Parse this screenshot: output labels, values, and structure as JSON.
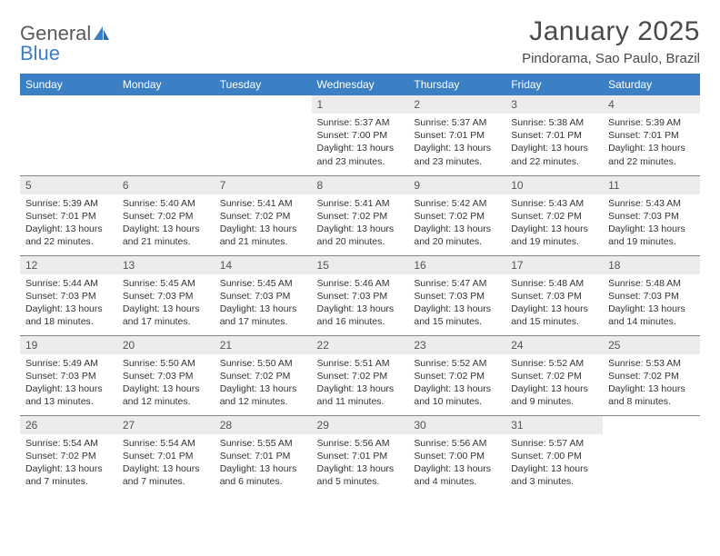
{
  "logo": {
    "text1": "General",
    "text2": "Blue"
  },
  "title": "January 2025",
  "location": "Pindorama, Sao Paulo, Brazil",
  "colors": {
    "header_bg": "#3b7fc4",
    "header_text": "#ffffff",
    "daynum_bg": "#ececec",
    "text": "#333333",
    "border": "#888888",
    "background": "#ffffff"
  },
  "weekdays": [
    "Sunday",
    "Monday",
    "Tuesday",
    "Wednesday",
    "Thursday",
    "Friday",
    "Saturday"
  ],
  "weeks": [
    [
      null,
      null,
      null,
      {
        "n": "1",
        "sr": "Sunrise: 5:37 AM",
        "ss": "Sunset: 7:00 PM",
        "d1": "Daylight: 13 hours",
        "d2": "and 23 minutes."
      },
      {
        "n": "2",
        "sr": "Sunrise: 5:37 AM",
        "ss": "Sunset: 7:01 PM",
        "d1": "Daylight: 13 hours",
        "d2": "and 23 minutes."
      },
      {
        "n": "3",
        "sr": "Sunrise: 5:38 AM",
        "ss": "Sunset: 7:01 PM",
        "d1": "Daylight: 13 hours",
        "d2": "and 22 minutes."
      },
      {
        "n": "4",
        "sr": "Sunrise: 5:39 AM",
        "ss": "Sunset: 7:01 PM",
        "d1": "Daylight: 13 hours",
        "d2": "and 22 minutes."
      }
    ],
    [
      {
        "n": "5",
        "sr": "Sunrise: 5:39 AM",
        "ss": "Sunset: 7:01 PM",
        "d1": "Daylight: 13 hours",
        "d2": "and 22 minutes."
      },
      {
        "n": "6",
        "sr": "Sunrise: 5:40 AM",
        "ss": "Sunset: 7:02 PM",
        "d1": "Daylight: 13 hours",
        "d2": "and 21 minutes."
      },
      {
        "n": "7",
        "sr": "Sunrise: 5:41 AM",
        "ss": "Sunset: 7:02 PM",
        "d1": "Daylight: 13 hours",
        "d2": "and 21 minutes."
      },
      {
        "n": "8",
        "sr": "Sunrise: 5:41 AM",
        "ss": "Sunset: 7:02 PM",
        "d1": "Daylight: 13 hours",
        "d2": "and 20 minutes."
      },
      {
        "n": "9",
        "sr": "Sunrise: 5:42 AM",
        "ss": "Sunset: 7:02 PM",
        "d1": "Daylight: 13 hours",
        "d2": "and 20 minutes."
      },
      {
        "n": "10",
        "sr": "Sunrise: 5:43 AM",
        "ss": "Sunset: 7:02 PM",
        "d1": "Daylight: 13 hours",
        "d2": "and 19 minutes."
      },
      {
        "n": "11",
        "sr": "Sunrise: 5:43 AM",
        "ss": "Sunset: 7:03 PM",
        "d1": "Daylight: 13 hours",
        "d2": "and 19 minutes."
      }
    ],
    [
      {
        "n": "12",
        "sr": "Sunrise: 5:44 AM",
        "ss": "Sunset: 7:03 PM",
        "d1": "Daylight: 13 hours",
        "d2": "and 18 minutes."
      },
      {
        "n": "13",
        "sr": "Sunrise: 5:45 AM",
        "ss": "Sunset: 7:03 PM",
        "d1": "Daylight: 13 hours",
        "d2": "and 17 minutes."
      },
      {
        "n": "14",
        "sr": "Sunrise: 5:45 AM",
        "ss": "Sunset: 7:03 PM",
        "d1": "Daylight: 13 hours",
        "d2": "and 17 minutes."
      },
      {
        "n": "15",
        "sr": "Sunrise: 5:46 AM",
        "ss": "Sunset: 7:03 PM",
        "d1": "Daylight: 13 hours",
        "d2": "and 16 minutes."
      },
      {
        "n": "16",
        "sr": "Sunrise: 5:47 AM",
        "ss": "Sunset: 7:03 PM",
        "d1": "Daylight: 13 hours",
        "d2": "and 15 minutes."
      },
      {
        "n": "17",
        "sr": "Sunrise: 5:48 AM",
        "ss": "Sunset: 7:03 PM",
        "d1": "Daylight: 13 hours",
        "d2": "and 15 minutes."
      },
      {
        "n": "18",
        "sr": "Sunrise: 5:48 AM",
        "ss": "Sunset: 7:03 PM",
        "d1": "Daylight: 13 hours",
        "d2": "and 14 minutes."
      }
    ],
    [
      {
        "n": "19",
        "sr": "Sunrise: 5:49 AM",
        "ss": "Sunset: 7:03 PM",
        "d1": "Daylight: 13 hours",
        "d2": "and 13 minutes."
      },
      {
        "n": "20",
        "sr": "Sunrise: 5:50 AM",
        "ss": "Sunset: 7:03 PM",
        "d1": "Daylight: 13 hours",
        "d2": "and 12 minutes."
      },
      {
        "n": "21",
        "sr": "Sunrise: 5:50 AM",
        "ss": "Sunset: 7:02 PM",
        "d1": "Daylight: 13 hours",
        "d2": "and 12 minutes."
      },
      {
        "n": "22",
        "sr": "Sunrise: 5:51 AM",
        "ss": "Sunset: 7:02 PM",
        "d1": "Daylight: 13 hours",
        "d2": "and 11 minutes."
      },
      {
        "n": "23",
        "sr": "Sunrise: 5:52 AM",
        "ss": "Sunset: 7:02 PM",
        "d1": "Daylight: 13 hours",
        "d2": "and 10 minutes."
      },
      {
        "n": "24",
        "sr": "Sunrise: 5:52 AM",
        "ss": "Sunset: 7:02 PM",
        "d1": "Daylight: 13 hours",
        "d2": "and 9 minutes."
      },
      {
        "n": "25",
        "sr": "Sunrise: 5:53 AM",
        "ss": "Sunset: 7:02 PM",
        "d1": "Daylight: 13 hours",
        "d2": "and 8 minutes."
      }
    ],
    [
      {
        "n": "26",
        "sr": "Sunrise: 5:54 AM",
        "ss": "Sunset: 7:02 PM",
        "d1": "Daylight: 13 hours",
        "d2": "and 7 minutes."
      },
      {
        "n": "27",
        "sr": "Sunrise: 5:54 AM",
        "ss": "Sunset: 7:01 PM",
        "d1": "Daylight: 13 hours",
        "d2": "and 7 minutes."
      },
      {
        "n": "28",
        "sr": "Sunrise: 5:55 AM",
        "ss": "Sunset: 7:01 PM",
        "d1": "Daylight: 13 hours",
        "d2": "and 6 minutes."
      },
      {
        "n": "29",
        "sr": "Sunrise: 5:56 AM",
        "ss": "Sunset: 7:01 PM",
        "d1": "Daylight: 13 hours",
        "d2": "and 5 minutes."
      },
      {
        "n": "30",
        "sr": "Sunrise: 5:56 AM",
        "ss": "Sunset: 7:00 PM",
        "d1": "Daylight: 13 hours",
        "d2": "and 4 minutes."
      },
      {
        "n": "31",
        "sr": "Sunrise: 5:57 AM",
        "ss": "Sunset: 7:00 PM",
        "d1": "Daylight: 13 hours",
        "d2": "and 3 minutes."
      },
      null
    ]
  ]
}
